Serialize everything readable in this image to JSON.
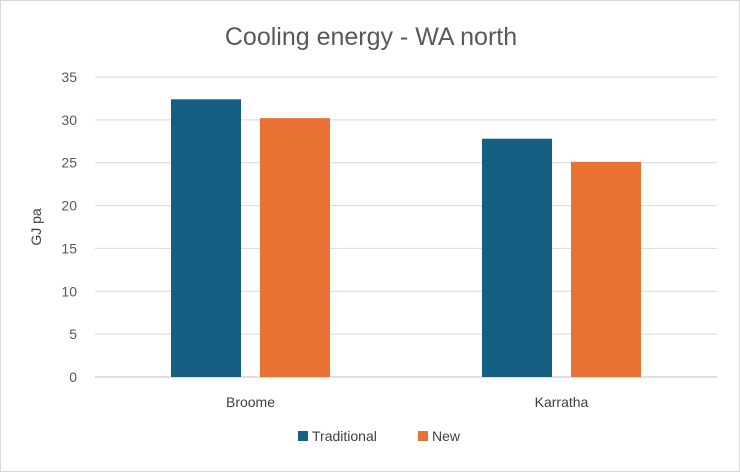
{
  "chart_data": {
    "type": "bar",
    "title": "Cooling energy - WA north",
    "xlabel": "",
    "ylabel": "GJ pa",
    "categories": [
      "Broome",
      "Karratha"
    ],
    "series": [
      {
        "name": "Traditional",
        "color": "#156082",
        "values": [
          32.4,
          27.8
        ]
      },
      {
        "name": "New",
        "color": "#E97132",
        "values": [
          30.2,
          25.1
        ]
      }
    ],
    "ylim": [
      0,
      35
    ],
    "yticks": [
      "0",
      "5",
      "10",
      "15",
      "20",
      "25",
      "30",
      "35"
    ],
    "grid": true,
    "legend": "bottom"
  }
}
